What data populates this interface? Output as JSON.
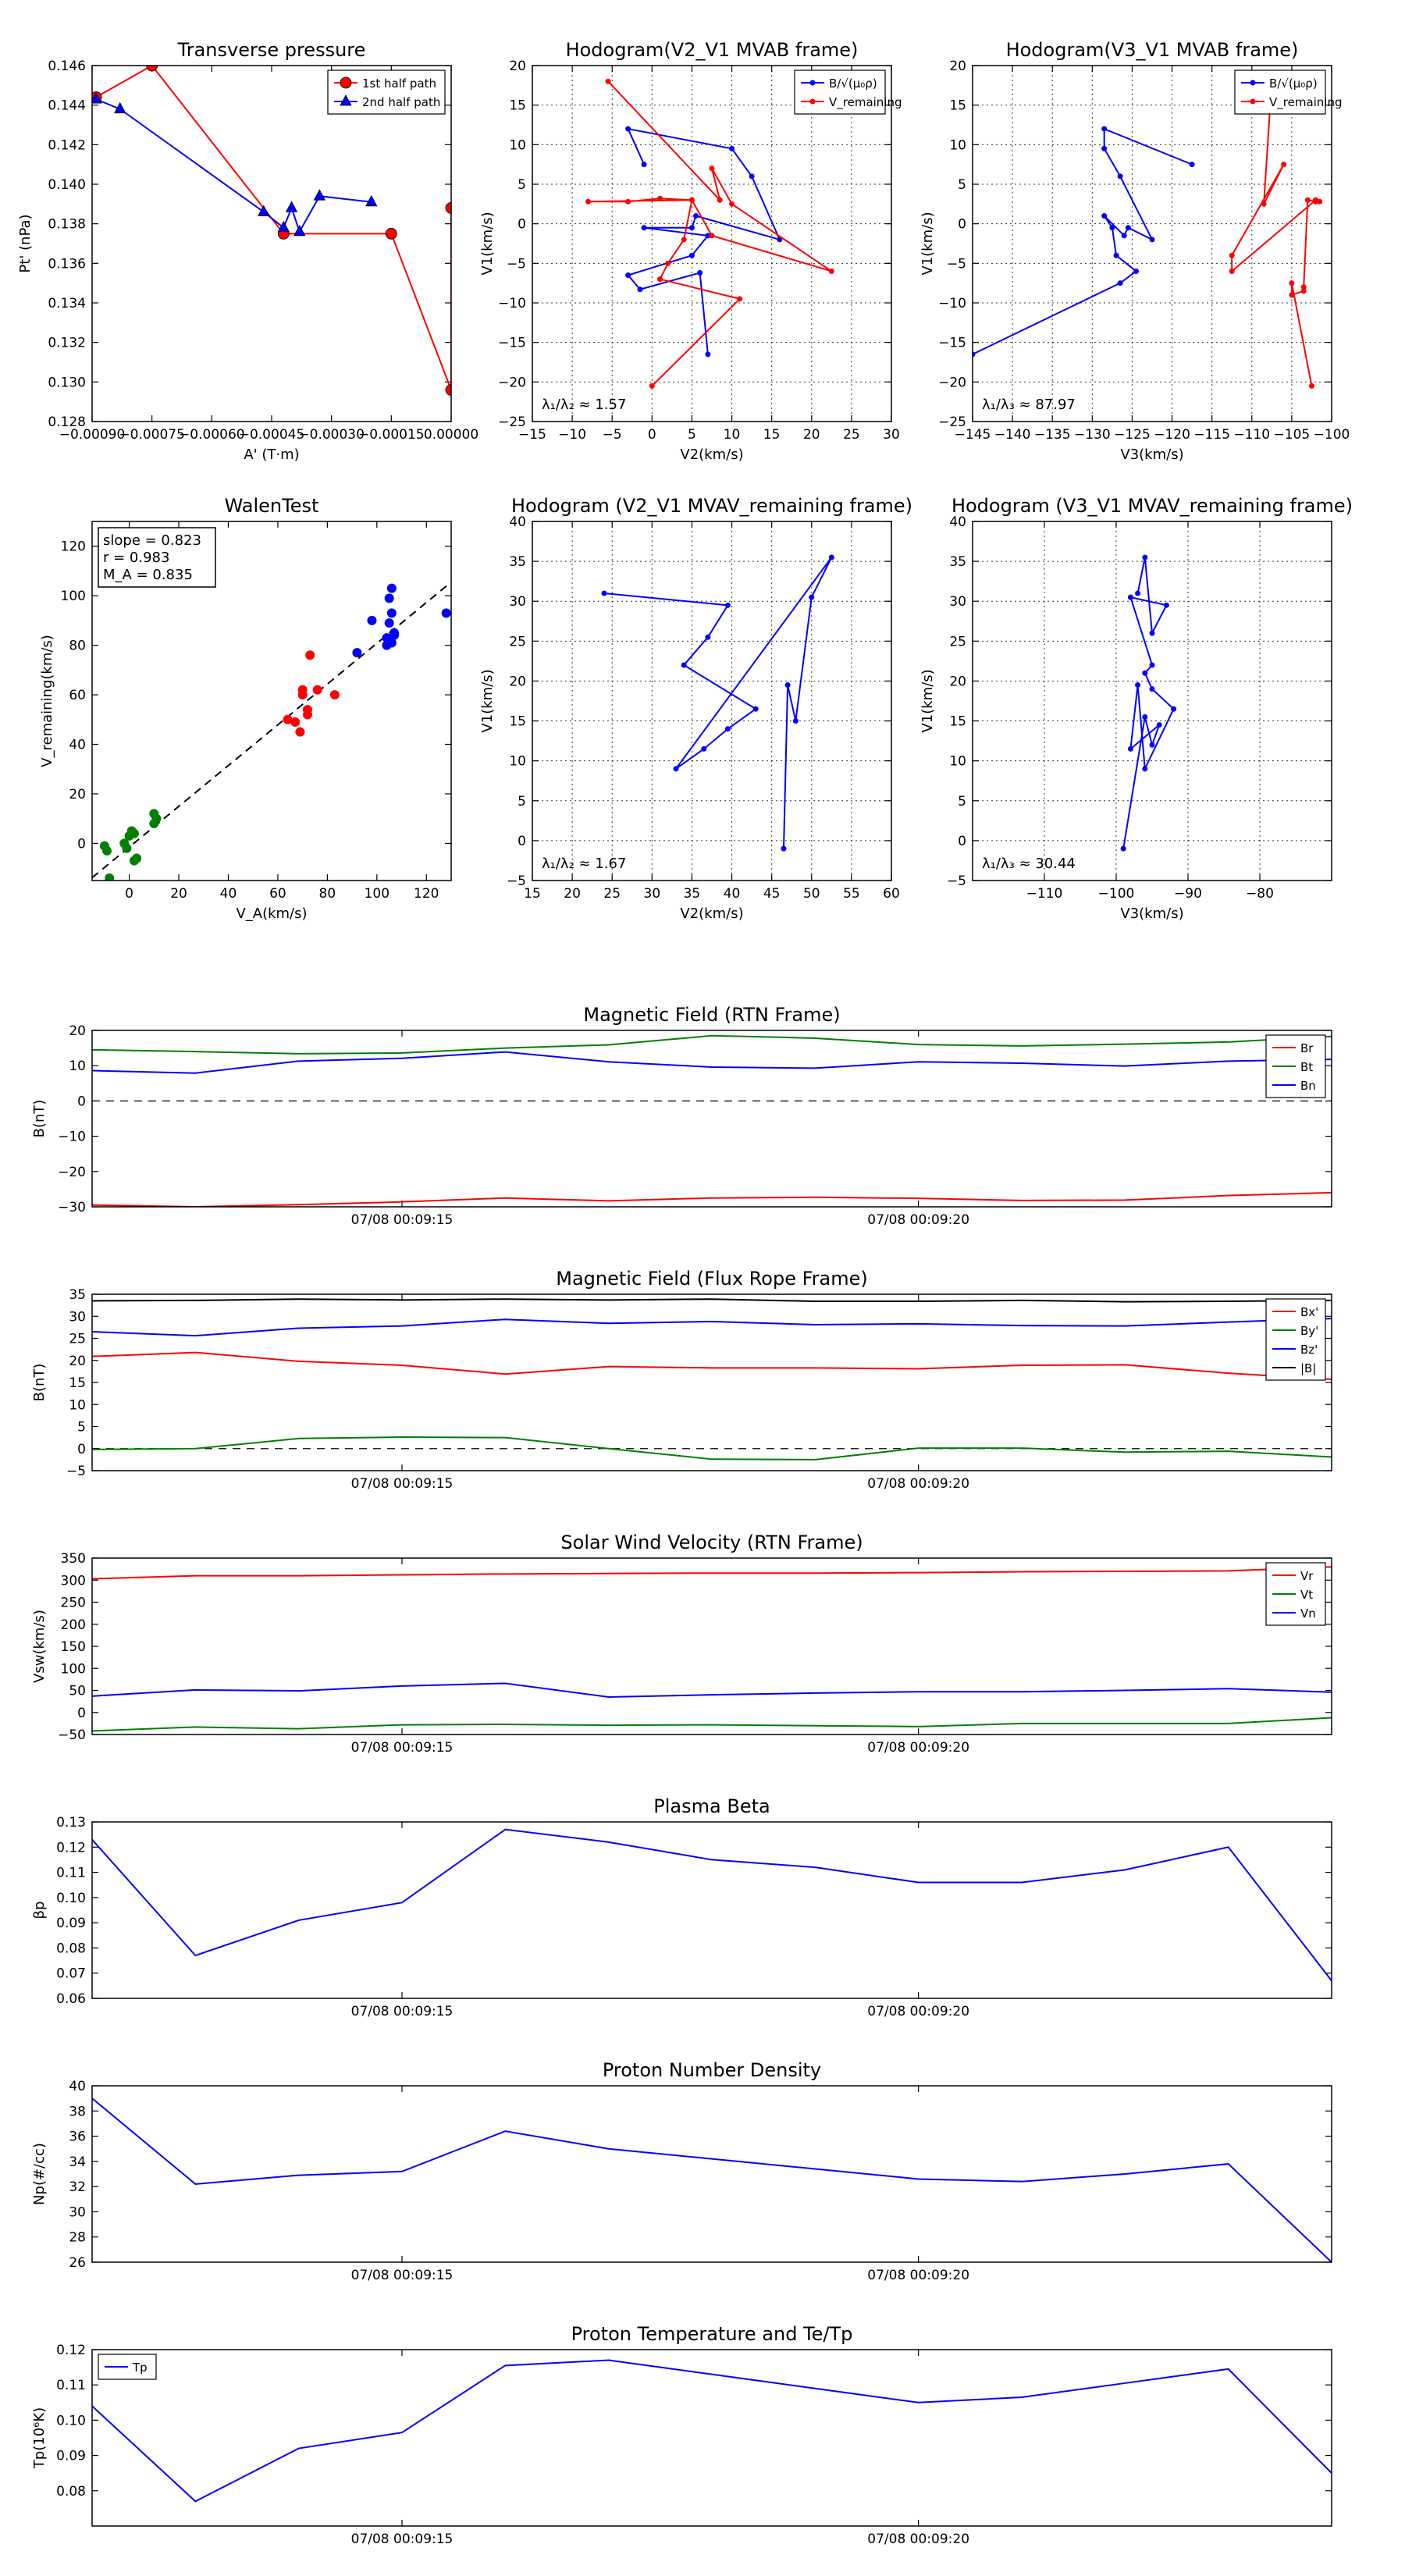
{
  "chart_data": [
    {
      "id": "transverse_pressure",
      "type": "line",
      "title": "Transverse pressure",
      "xlabel": "A' (T·m)",
      "ylabel": "Pt' (nPa)",
      "xlim": [
        -0.0009,
        0.0
      ],
      "ylim": [
        0.128,
        0.146
      ],
      "xticks": [
        -0.0009,
        -0.00075,
        -0.0006,
        -0.00045,
        -0.0003,
        -0.00015,
        0.0
      ],
      "xtick_labels": [
        "−0.00090",
        "−0.00075",
        "−0.00060",
        "−0.00045",
        "−0.00030",
        "−0.00015",
        "0.00000"
      ],
      "yticks": [
        0.128,
        0.13,
        0.132,
        0.134,
        0.136,
        0.138,
        0.14,
        0.142,
        0.144,
        0.146
      ],
      "ytick_labels": [
        "0.128",
        "0.130",
        "0.132",
        "0.134",
        "0.136",
        "0.138",
        "0.140",
        "0.142",
        "0.144",
        "0.146"
      ],
      "legend_position": "top-right",
      "series": [
        {
          "name": "1st half path",
          "color": "#ff0000",
          "marker": "circle",
          "x": [
            -0.00089,
            -0.00075,
            -0.00042,
            -0.00015,
            0.0,
            0.0
          ],
          "y": [
            0.1444,
            0.146,
            0.1375,
            0.1375,
            0.1296,
            0.1388
          ]
        },
        {
          "name": "2nd half path",
          "color": "#0000ff",
          "marker": "triangle",
          "x": [
            -0.00089,
            -0.00083,
            -0.00047,
            -0.00042,
            -0.0004,
            -0.00038,
            -0.00033,
            -0.0002
          ],
          "y": [
            0.1443,
            0.1438,
            0.1386,
            0.1378,
            0.1388,
            0.1376,
            0.1394,
            0.1391
          ]
        }
      ]
    },
    {
      "id": "hodogram_v2v1_mvab",
      "type": "line",
      "title": "Hodogram(V2_V1 MVAB frame)",
      "xlabel": "V2(km/s)",
      "ylabel": "V1(km/s)",
      "xlim": [
        -15,
        30
      ],
      "ylim": [
        -25,
        20
      ],
      "xticks": [
        -15,
        -10,
        -5,
        0,
        5,
        10,
        15,
        20,
        25,
        30
      ],
      "yticks": [
        -25,
        -20,
        -15,
        -10,
        -5,
        0,
        5,
        10,
        15,
        20
      ],
      "grid": true,
      "legend_position": "top-right",
      "annotation": {
        "label": "λ₁/λ₂ ≈",
        "value": "1.57"
      },
      "series": [
        {
          "name": "B/√(μ₀ρ)",
          "color": "#0000ff",
          "x": [
            -1,
            -3,
            10,
            12.5,
            16,
            5.5,
            5,
            -1,
            7,
            5,
            -3,
            -1.5,
            6,
            7
          ],
          "y": [
            7.5,
            12,
            9.5,
            6,
            -2,
            1,
            -0.5,
            -0.5,
            -1.5,
            -4,
            -6.5,
            -8.3,
            -6.2,
            -16.5
          ]
        },
        {
          "name": "V_remaining",
          "color": "#ff0000",
          "x": [
            -5.5,
            8.5,
            7.5,
            10,
            22.5,
            7.5,
            5,
            -8,
            -3,
            1,
            5,
            4,
            2,
            1,
            11,
            0
          ],
          "y": [
            18,
            3,
            7,
            2.5,
            -6,
            -1.5,
            3,
            2.8,
            2.8,
            3.2,
            3,
            -2,
            -5,
            -7,
            -9.5,
            -20.5
          ]
        }
      ]
    },
    {
      "id": "hodogram_v3v1_mvab",
      "type": "line",
      "title": "Hodogram(V3_V1 MVAB frame)",
      "xlabel": "V3(km/s)",
      "ylabel": "V1(km/s)",
      "xlim": [
        -145,
        -100
      ],
      "ylim": [
        -25,
        20
      ],
      "xticks": [
        -145,
        -140,
        -135,
        -130,
        -125,
        -120,
        -115,
        -110,
        -105,
        -100
      ],
      "yticks": [
        -25,
        -20,
        -15,
        -10,
        -5,
        0,
        5,
        10,
        15,
        20
      ],
      "grid": true,
      "legend_position": "top-right",
      "annotation": {
        "label": "λ₁/λ₃ ≈",
        "value": "87.97"
      },
      "series": [
        {
          "name": "B/√(μ₀ρ)",
          "color": "#0000ff",
          "x": [
            -117.5,
            -128.5,
            -128.5,
            -126.5,
            -122.5,
            -125.5,
            -126,
            -128.5,
            -127.5,
            -127,
            -124.5,
            -126.5,
            -145
          ],
          "y": [
            7.5,
            12,
            9.5,
            6,
            -2,
            -0.5,
            -1.5,
            1,
            -0.5,
            -4,
            -6,
            -7.5,
            -16.5
          ]
        },
        {
          "name": "V_remaining",
          "color": "#ff0000",
          "x": [
            -107.5,
            -108.5,
            -106,
            -112.5,
            -112.5,
            -102,
            -101.5,
            -102,
            -103,
            -103.5,
            -103.5,
            -105,
            -105,
            -102.5
          ],
          "y": [
            18,
            2.5,
            7.5,
            -4,
            -6,
            3,
            2.8,
            2.8,
            3,
            -8,
            -8.5,
            -9,
            -7.5,
            -20.5
          ]
        }
      ]
    },
    {
      "id": "walen_test",
      "type": "scatter",
      "title": "WalenTest",
      "xlabel": "V_A(km/s)",
      "ylabel": "V_remaining(km/s)",
      "xlim": [
        -15,
        130
      ],
      "ylim": [
        -15,
        130
      ],
      "xticks": [
        0,
        20,
        40,
        60,
        80,
        100,
        120
      ],
      "yticks": [
        0,
        20,
        40,
        60,
        80,
        100,
        120
      ],
      "fit": {
        "slope": 0.823,
        "intercept": -1.5
      },
      "stats": {
        "slope": "slope = 0.823",
        "r": "r = 0.983",
        "ma": "M_A = 0.835"
      },
      "series": [
        {
          "name": "green",
          "color": "#008000",
          "x": [
            -10,
            -9,
            -8,
            -2,
            -1,
            0,
            1,
            2,
            2,
            3,
            10,
            10,
            11
          ],
          "y": [
            -1,
            -3,
            -14,
            0,
            -2,
            3,
            5,
            4,
            -7,
            -6,
            8,
            12,
            10
          ]
        },
        {
          "name": "red",
          "color": "#ff0000",
          "x": [
            64,
            67,
            69,
            70,
            70,
            72,
            72,
            73,
            76,
            83
          ],
          "y": [
            50,
            49,
            45,
            60,
            62,
            54,
            52,
            76,
            62,
            60
          ]
        },
        {
          "name": "blue",
          "color": "#0000ff",
          "x": [
            92,
            98,
            104,
            104,
            105,
            105,
            106,
            106,
            106,
            107,
            107,
            128
          ],
          "y": [
            77,
            90,
            80,
            83,
            89,
            99,
            103,
            81,
            93,
            84,
            85,
            93
          ]
        }
      ]
    },
    {
      "id": "hodogram_v2v1_mvav",
      "type": "line",
      "title": "Hodogram (V2_V1 MVAV_remaining frame)",
      "xlabel": "V2(km/s)",
      "ylabel": "V1(km/s)",
      "xlim": [
        15,
        60
      ],
      "ylim": [
        -5,
        40
      ],
      "xticks": [
        15,
        20,
        25,
        30,
        35,
        40,
        45,
        50,
        55,
        60
      ],
      "yticks": [
        -5,
        0,
        5,
        10,
        15,
        20,
        25,
        30,
        35,
        40
      ],
      "grid": true,
      "annotation": {
        "label": "λ₁/λ₂ ≈",
        "value": "1.67"
      },
      "series": [
        {
          "name": "track",
          "color": "#0000ff",
          "x": [
            24,
            39.5,
            37,
            34,
            43,
            39.5,
            36.5,
            33,
            52.5,
            50,
            48,
            47,
            46.5
          ],
          "y": [
            31,
            29.5,
            25.5,
            22,
            16.5,
            14,
            11.5,
            9,
            35.5,
            30.5,
            15,
            19.5,
            -1
          ]
        }
      ]
    },
    {
      "id": "hodogram_v3v1_mvav",
      "type": "line",
      "title": "Hodogram (V3_V1 MVAV_remaining frame)",
      "xlabel": "V3(km/s)",
      "ylabel": "V1(km/s)",
      "xlim": [
        -120,
        -70
      ],
      "ylim": [
        -5,
        40
      ],
      "xticks": [
        -110,
        -100,
        -90,
        -80
      ],
      "yticks": [
        -5,
        0,
        5,
        10,
        15,
        20,
        25,
        30,
        35,
        40
      ],
      "grid": true,
      "annotation": {
        "label": "λ₁/λ₃ ≈",
        "value": "30.44"
      },
      "series": [
        {
          "name": "track",
          "color": "#0000ff",
          "x": [
            -97,
            -96,
            -95,
            -93,
            -98,
            -95,
            -96,
            -95,
            -92,
            -96,
            -97,
            -98,
            -94,
            -95,
            -96,
            -99
          ],
          "y": [
            31,
            35.5,
            26,
            29.5,
            30.5,
            22,
            21,
            19,
            16.5,
            9,
            19.5,
            11.5,
            14.5,
            12,
            15.5,
            -1
          ]
        }
      ]
    },
    {
      "id": "magnetic_field_rtn",
      "type": "line",
      "title": "Magnetic Field (RTN Frame)",
      "ylabel": "B(nT)",
      "xlim": [
        0,
        12
      ],
      "ylim": [
        -30,
        20
      ],
      "xticks": [
        3,
        8
      ],
      "xtick_labels": [
        "07/08 00:09:15",
        "07/08 00:09:20"
      ],
      "yticks": [
        -30,
        -20,
        -10,
        0,
        10,
        20
      ],
      "zero_line": true,
      "legend_position": "top-right",
      "x": [
        0,
        1,
        2,
        3,
        4,
        5,
        6,
        7,
        8,
        9,
        10,
        11,
        12
      ],
      "series": [
        {
          "name": "Br",
          "color": "#ff0000",
          "values": [
            -29.5,
            -30,
            -29.4,
            -28.6,
            -27.5,
            -28.3,
            -27.5,
            -27.3,
            -27.6,
            -28.2,
            -28.1,
            -26.8,
            -26
          ]
        },
        {
          "name": "Bt",
          "color": "#008000",
          "values": [
            14.5,
            14,
            13.4,
            13.6,
            15,
            15.9,
            18.5,
            17.8,
            16,
            15.6,
            16.1,
            16.7,
            18.3
          ]
        },
        {
          "name": "Bn",
          "color": "#0000ff",
          "values": [
            8.6,
            7.9,
            11.3,
            12.1,
            13.9,
            11.1,
            9.6,
            9.3,
            11.1,
            10.7,
            9.9,
            11.3,
            11.8
          ]
        }
      ]
    },
    {
      "id": "magnetic_field_fluxrope",
      "type": "line",
      "title": "Magnetic Field (Flux Rope Frame)",
      "ylabel": "B(nT)",
      "xlim": [
        0,
        12
      ],
      "ylim": [
        -5,
        35
      ],
      "xticks": [
        3,
        8
      ],
      "xtick_labels": [
        "07/08 00:09:15",
        "07/08 00:09:20"
      ],
      "yticks": [
        -5,
        0,
        5,
        10,
        15,
        20,
        25,
        30,
        35
      ],
      "zero_line": true,
      "legend_position": "top-right",
      "x": [
        0,
        1,
        2,
        3,
        4,
        5,
        6,
        7,
        8,
        9,
        10,
        11,
        12
      ],
      "series": [
        {
          "name": "Bx'",
          "color": "#ff0000",
          "values": [
            20.9,
            21.8,
            19.8,
            18.9,
            16.9,
            18.6,
            18.3,
            18.3,
            18.1,
            18.9,
            19,
            17.1,
            15.7
          ]
        },
        {
          "name": "By'",
          "color": "#008000",
          "values": [
            -0.2,
            0,
            2.3,
            2.6,
            2.5,
            0,
            -2.4,
            -2.5,
            0.1,
            0.1,
            -0.8,
            -0.6,
            -1.9
          ]
        },
        {
          "name": "Bz'",
          "color": "#0000ff",
          "values": [
            26.5,
            25.6,
            27.3,
            27.8,
            29.3,
            28.4,
            28.8,
            28.1,
            28.3,
            27.9,
            27.8,
            28.7,
            29.5
          ]
        },
        {
          "name": "|B|",
          "color": "#000000",
          "values": [
            33.5,
            33.6,
            33.9,
            33.7,
            33.9,
            33.7,
            33.9,
            33.4,
            33.4,
            33.6,
            33.3,
            33.4,
            33.6
          ]
        }
      ]
    },
    {
      "id": "solar_wind_velocity",
      "type": "line",
      "title": "Solar Wind Velocity (RTN Frame)",
      "ylabel": "Vsw(km/s)",
      "xlim": [
        0,
        12
      ],
      "ylim": [
        -50,
        350
      ],
      "xticks": [
        3,
        8
      ],
      "xtick_labels": [
        "07/08 00:09:15",
        "07/08 00:09:20"
      ],
      "yticks": [
        -50,
        0,
        50,
        100,
        150,
        200,
        250,
        300,
        350
      ],
      "legend_position": "top-right",
      "x": [
        0,
        1,
        2,
        3,
        4,
        5,
        6,
        7,
        8,
        9,
        10,
        11,
        12
      ],
      "series": [
        {
          "name": "Vr",
          "color": "#ff0000",
          "values": [
            303,
            310,
            310,
            312,
            314,
            315,
            316,
            316,
            317,
            319,
            320,
            321,
            330
          ]
        },
        {
          "name": "Vt",
          "color": "#008000",
          "values": [
            -42,
            -33,
            -37,
            -28,
            -27,
            -29,
            -28,
            -30,
            -32,
            -25,
            -25,
            -25,
            -12
          ]
        },
        {
          "name": "Vn",
          "color": "#0000ff",
          "values": [
            37,
            51,
            49,
            60,
            66,
            35,
            40,
            44,
            47,
            47,
            50,
            54,
            46
          ]
        }
      ]
    },
    {
      "id": "plasma_beta",
      "type": "line",
      "title": "Plasma Beta",
      "ylabel": "βp",
      "xlim": [
        0,
        12
      ],
      "ylim": [
        0.06,
        0.13
      ],
      "xticks": [
        3,
        8
      ],
      "xtick_labels": [
        "07/08 00:09:15",
        "07/08 00:09:20"
      ],
      "yticks": [
        0.06,
        0.07,
        0.08,
        0.09,
        0.1,
        0.11,
        0.12,
        0.13
      ],
      "ytick_labels": [
        "0.06",
        "0.07",
        "0.08",
        "0.09",
        "0.10",
        "0.11",
        "0.12",
        "0.13"
      ],
      "x": [
        0,
        1,
        2,
        3,
        4,
        5,
        6,
        7,
        8,
        9,
        10,
        11,
        12
      ],
      "series": [
        {
          "name": "beta",
          "color": "#0000ff",
          "values": [
            0.123,
            0.077,
            0.091,
            0.098,
            0.127,
            0.122,
            0.115,
            0.112,
            0.106,
            0.106,
            0.111,
            0.12,
            0.067
          ]
        }
      ]
    },
    {
      "id": "proton_density",
      "type": "line",
      "title": "Proton Number Density",
      "ylabel": "Np(#/cc)",
      "xlim": [
        0,
        12
      ],
      "ylim": [
        26,
        40
      ],
      "xticks": [
        3,
        8
      ],
      "xtick_labels": [
        "07/08 00:09:15",
        "07/08 00:09:20"
      ],
      "yticks": [
        26,
        28,
        30,
        32,
        34,
        36,
        38,
        40
      ],
      "x": [
        0,
        1,
        2,
        3,
        4,
        5,
        6,
        7,
        8,
        9,
        10,
        11,
        12
      ],
      "series": [
        {
          "name": "Np",
          "color": "#0000ff",
          "values": [
            39,
            32.2,
            32.9,
            33.2,
            36.4,
            35,
            34.2,
            33.4,
            32.6,
            32.4,
            33,
            33.8,
            26
          ]
        }
      ]
    },
    {
      "id": "proton_temperature",
      "type": "line",
      "title": "Proton Temperature and Te/Tp",
      "ylabel": "Tp(10⁶K)",
      "xlim": [
        0,
        12
      ],
      "ylim": [
        0.07,
        0.12
      ],
      "xticks": [
        3,
        8
      ],
      "xtick_labels": [
        "07/08 00:09:15",
        "07/08 00:09:20"
      ],
      "yticks": [
        0.08,
        0.09,
        0.1,
        0.11,
        0.12
      ],
      "ytick_labels": [
        "0.08",
        "0.09",
        "0.10",
        "0.11",
        "0.12"
      ],
      "legend_position": "top-left",
      "x": [
        0,
        1,
        2,
        3,
        4,
        5,
        6,
        7,
        8,
        9,
        10,
        11,
        12
      ],
      "series": [
        {
          "name": "Tp",
          "color": "#0000ff",
          "values": [
            0.104,
            0.077,
            0.092,
            0.0965,
            0.1155,
            0.117,
            0.113,
            0.109,
            0.105,
            0.1065,
            0.1105,
            0.1145,
            0.085
          ]
        }
      ]
    }
  ]
}
